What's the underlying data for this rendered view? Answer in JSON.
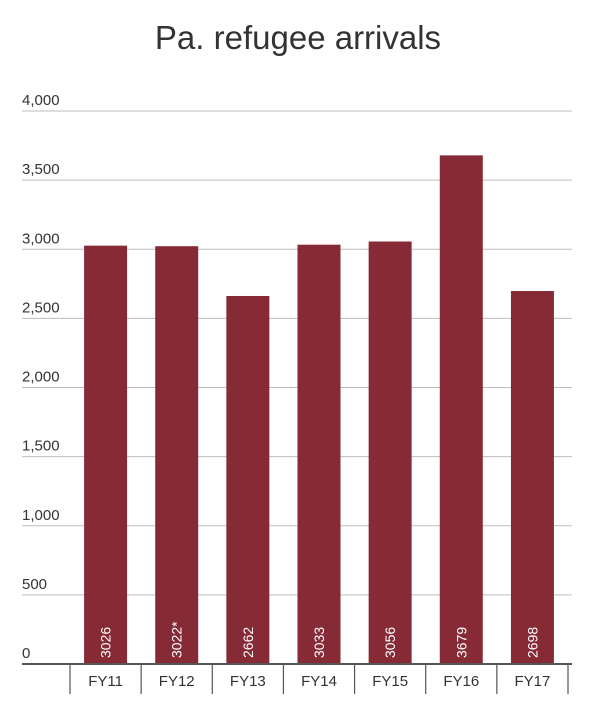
{
  "chart_data": {
    "type": "bar",
    "title": "Pa. refugee arrivals",
    "categories": [
      "FY11",
      "FY12",
      "FY13",
      "FY14",
      "FY15",
      "FY16",
      "FY17"
    ],
    "values": [
      3026,
      3022,
      2662,
      3033,
      3056,
      3679,
      2698
    ],
    "data_labels": [
      "3026",
      "3022*",
      "2662",
      "3033",
      "3056",
      "3679",
      "2698"
    ],
    "ylim": [
      0,
      4000
    ],
    "y_ticks": [
      0,
      500,
      1000,
      1500,
      2000,
      2500,
      3000,
      3500,
      4000
    ],
    "y_tick_labels": [
      "0",
      "500",
      "1,000",
      "1,500",
      "2,000",
      "2,500",
      "3,000",
      "3,500",
      "4,000"
    ],
    "grid": true,
    "bar_color": "#862a35",
    "xlabel": "",
    "ylabel": ""
  }
}
